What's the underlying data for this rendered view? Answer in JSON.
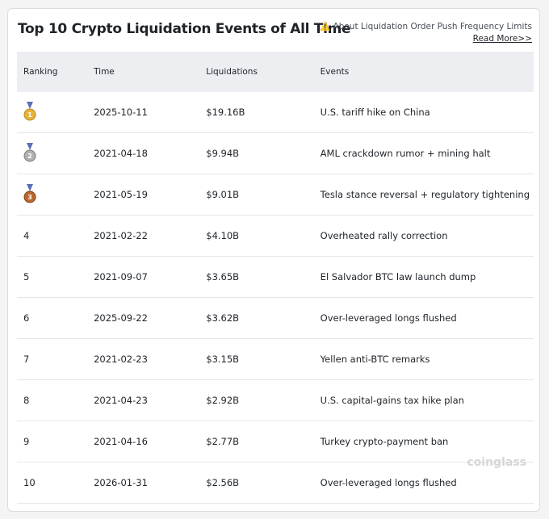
{
  "header": {
    "title": "Top 10 Crypto Liquidation Events of All Time",
    "notice": "⚠️ About Liquidation Order Push Frequency Limits",
    "link": "Read More>>"
  },
  "table": {
    "columns": [
      "Ranking",
      "Time",
      "Liquidations",
      "Events"
    ],
    "rows": [
      [
        1,
        "2025-10-11",
        "$19.16B",
        "U.S. tariff hike on China"
      ],
      [
        2,
        "2021-04-18",
        "$9.94B",
        "AML crackdown rumor + mining halt"
      ],
      [
        3,
        "2021-05-19",
        "$9.01B",
        "Tesla stance reversal + regulatory tightening"
      ],
      [
        4,
        "2021-02-22",
        "$4.10B",
        "Overheated rally correction"
      ],
      [
        5,
        "2021-09-07",
        "$3.65B",
        "El Salvador BTC law launch dump"
      ],
      [
        6,
        "2025-09-22",
        "$3.62B",
        "Over-leveraged longs flushed"
      ],
      [
        7,
        "2021-02-23",
        "$3.15B",
        "Yellen anti-BTC remarks"
      ],
      [
        8,
        "2021-04-23",
        "$2.92B",
        "U.S. capital-gains tax hike plan"
      ],
      [
        9,
        "2021-04-16",
        "$2.77B",
        "Turkey crypto-payment ban"
      ],
      [
        10,
        "2026-01-31",
        "$2.56B",
        "Over-leveraged longs flushed"
      ]
    ]
  },
  "watermark": "coinglass"
}
